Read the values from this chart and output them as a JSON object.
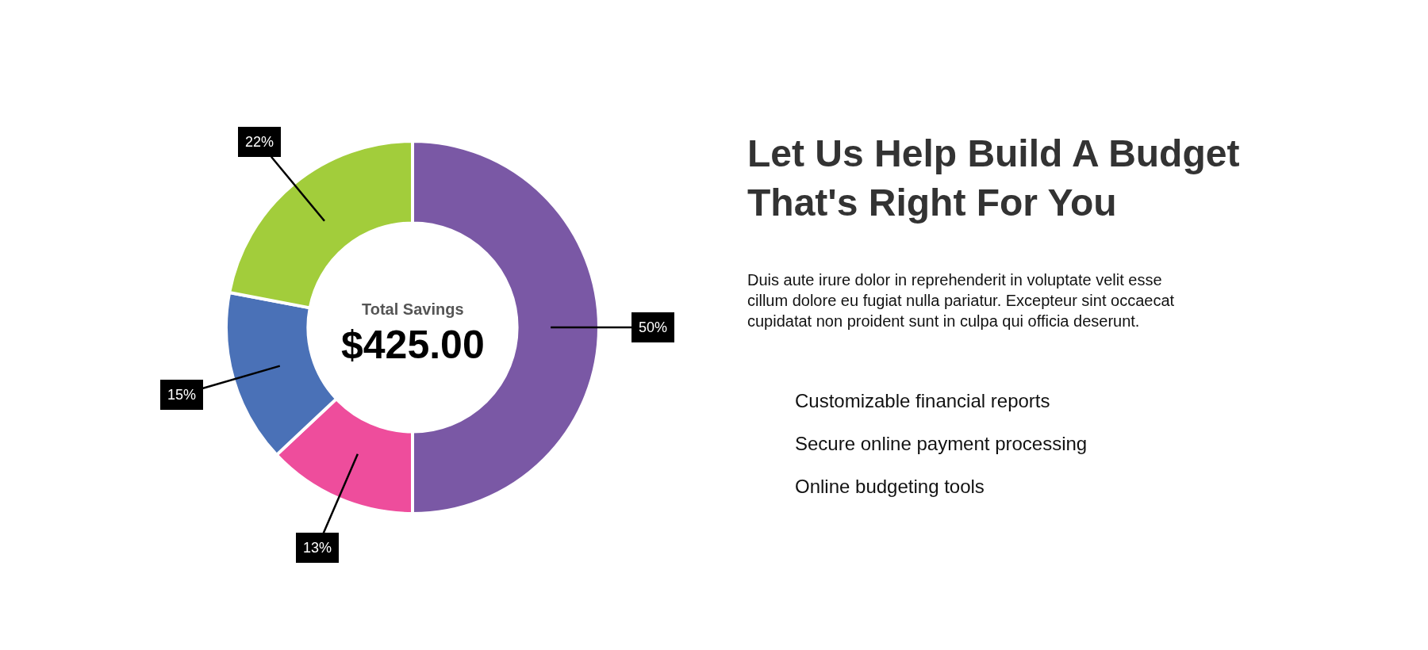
{
  "chart_data": {
    "type": "donut",
    "title": "Let Us Help Build A Budget That's Right For You",
    "subtitle": "Duis aute irure dolor in reprehenderit in voluptate velit esse cillum dolore eu fugiat nulla pariatur. Excepteur sint occaecat cupidatat non proident sunt in culpa qui officia deserunt.",
    "categories": [
      null,
      null,
      null,
      null
    ],
    "values": [
      50,
      13,
      15,
      22
    ],
    "colors": [
      "#7a58a5",
      "#ee4d9c",
      "#4a71b7",
      "#a2cd3b"
    ],
    "value_labels": [
      "50%",
      "13%",
      "15%",
      "22%"
    ],
    "annotations": [
      "Total Savings",
      "$425.00",
      "Customizable financial reports",
      "Secure online payment processing",
      "Online budgeting tools"
    ],
    "legend": false
  }
}
